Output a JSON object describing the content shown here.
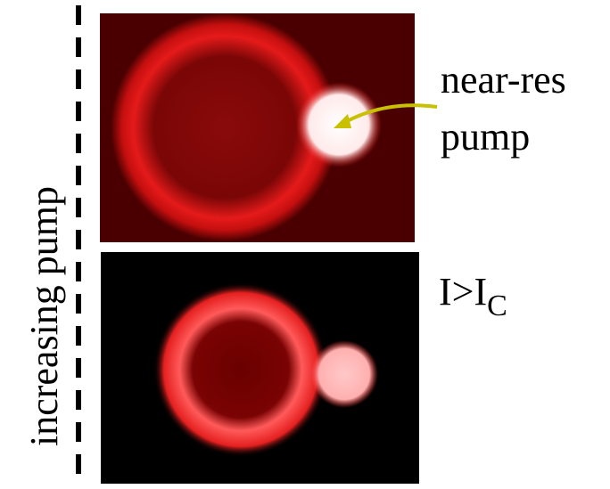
{
  "side_label": "increasing pump",
  "top_panel": {
    "label_lines": [
      "near-res",
      "pump"
    ]
  },
  "bottom_panel": {
    "label": "I>I",
    "label_subscript": "C"
  }
}
